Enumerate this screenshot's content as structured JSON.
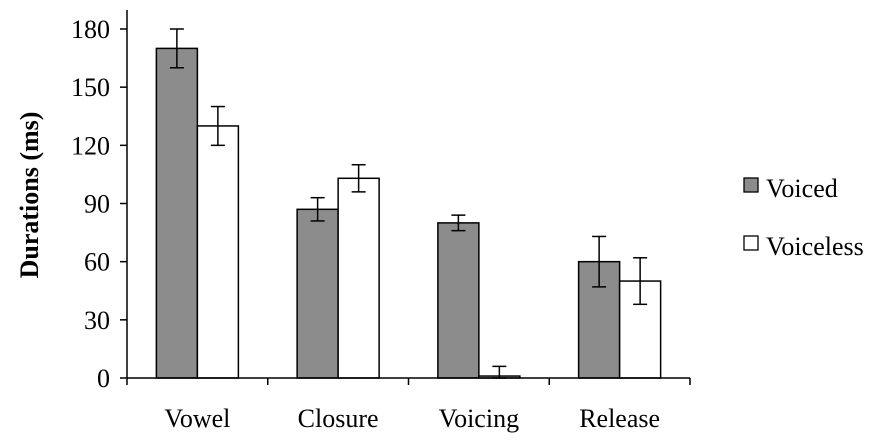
{
  "chart_data": {
    "type": "bar",
    "categories": [
      "Vowel",
      "Closure",
      "Voicing",
      "Release"
    ],
    "ylabel": "Durations (ms)",
    "xlabel": "",
    "ylim": [
      0,
      180
    ],
    "yticks": [
      "0",
      "30",
      "60",
      "90",
      "120",
      "150",
      "180"
    ],
    "grid": false,
    "legend_position": "right",
    "series": [
      {
        "name": "Voiced",
        "color": "#8c8c8c",
        "values": [
          170,
          87,
          80,
          60
        ],
        "error": [
          10,
          6,
          4,
          13
        ]
      },
      {
        "name": "Voiceless",
        "color": "#ffffff",
        "values": [
          130,
          103,
          1,
          50
        ],
        "error": [
          10,
          7,
          5,
          12
        ]
      }
    ]
  }
}
